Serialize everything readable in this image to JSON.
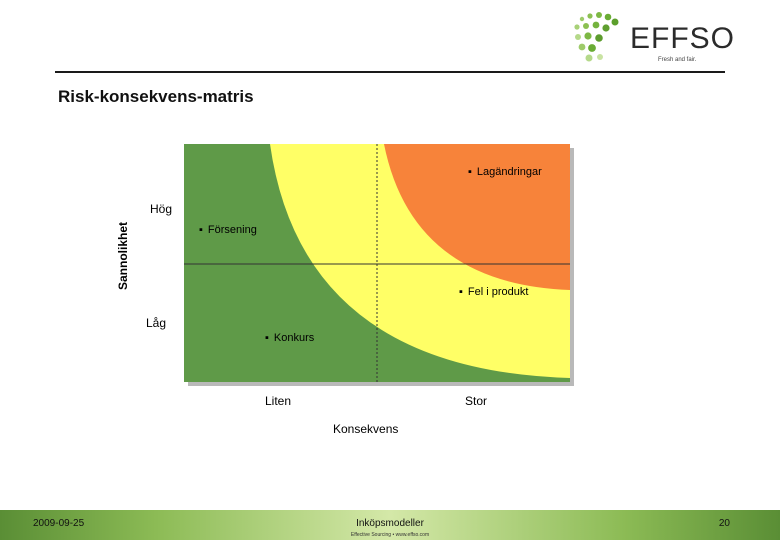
{
  "header": {
    "logo_text": "EFFSO",
    "logo_tagline": "Fresh and fair.",
    "title": "Risk-konsekvens-matris"
  },
  "matrix": {
    "y_axis_title": "Sannolikhet",
    "y_labels": {
      "high": "Hög",
      "low": "Låg"
    },
    "x_labels": {
      "low": "Liten",
      "high": "Stor"
    },
    "x_axis_title": "Konsekvens",
    "items": [
      {
        "label": "Lagändringar",
        "zone": "high-high"
      },
      {
        "label": "Försening",
        "zone": "high-low"
      },
      {
        "label": "Fel i produkt",
        "zone": "low-high"
      },
      {
        "label": "Konkurs",
        "zone": "low-low"
      }
    ],
    "bullet": "▪",
    "colors": {
      "green": "#5f9a48",
      "yellow": "#ffff66",
      "orange": "#f7833a",
      "divider": "#333333"
    }
  },
  "footer": {
    "date": "2009-09-25",
    "center": "Inköpsmodeller",
    "sub": "Effective Sourcing • www.effso.com",
    "page": "20"
  }
}
